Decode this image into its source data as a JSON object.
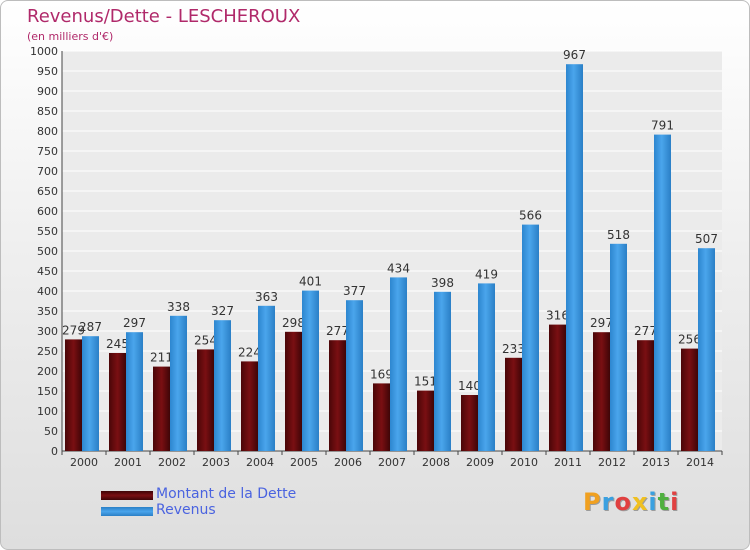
{
  "chart_data": {
    "type": "bar",
    "title": "Revenus/Dette - LESCHEROUX",
    "subtitle": "(en milliers d'€)",
    "categories": [
      "2000",
      "2001",
      "2002",
      "2003",
      "2004",
      "2005",
      "2006",
      "2007",
      "2008",
      "2009",
      "2010",
      "2011",
      "2012",
      "2013",
      "2014"
    ],
    "series": [
      {
        "name": "Montant de la Dette",
        "color": "#7a0f12",
        "values": [
          279,
          245,
          211,
          254,
          224,
          298,
          277,
          169,
          151,
          140,
          233,
          316,
          297,
          277,
          256
        ]
      },
      {
        "name": "Revenus",
        "color": "#4aa5ec",
        "values": [
          287,
          297,
          338,
          327,
          363,
          401,
          377,
          434,
          398,
          419,
          566,
          967,
          518,
          791,
          507
        ]
      }
    ],
    "yticks": [
      0,
      50,
      100,
      150,
      200,
      250,
      300,
      350,
      400,
      450,
      500,
      550,
      600,
      650,
      700,
      750,
      800,
      850,
      900,
      950,
      1000
    ],
    "ylim": [
      0,
      1000
    ],
    "grid": true,
    "legend_position": "bottom-left"
  },
  "logo": {
    "text": "Proxiti",
    "colors": [
      "#f0a020",
      "#3aa0e0",
      "#e04040",
      "#f0c020",
      "#3aa0e0",
      "#50b040",
      "#e04040"
    ]
  }
}
